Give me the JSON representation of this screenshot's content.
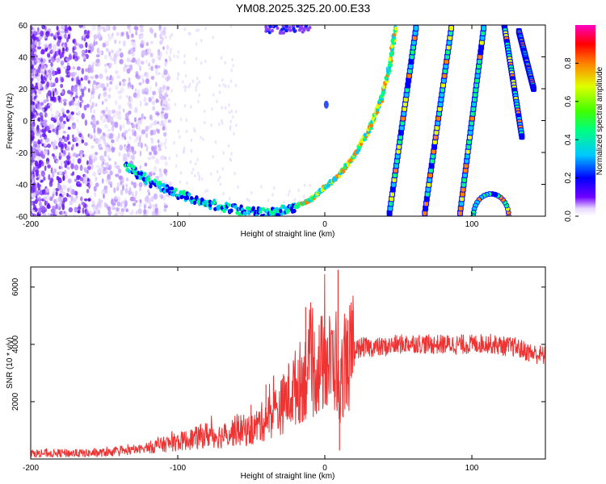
{
  "chart_data": [
    {
      "type": "heatmap",
      "title": "YM08.2025.325.20.00.E33",
      "xlabel": "Height of straight line (km)",
      "ylabel": "Frequency (Hz)",
      "xlim": [
        -200,
        150
      ],
      "ylim": [
        -60,
        60
      ],
      "x_ticks": [
        -200,
        -100,
        0,
        100
      ],
      "y_ticks": [
        -60,
        -40,
        -20,
        0,
        20,
        40,
        60
      ],
      "colorbar": {
        "label": "Normalized spectral amplitude",
        "range": [
          0,
          1
        ],
        "ticks": [
          0.0,
          0.2,
          0.4,
          0.6,
          0.8
        ]
      },
      "features": [
        {
          "name": "",
          "kind": "scatter-noise",
          "x": [
            -200,
            -110
          ],
          "y": [
            -60,
            60
          ]
        },
        {
          "name": "",
          "kind": "curve",
          "points": [
            [
              -135,
              -28
            ],
            [
              -120,
              -38
            ],
            [
              -100,
              -46
            ],
            [
              -80,
              -52
            ],
            [
              -60,
              -56
            ],
            [
              -40,
              -58
            ],
            [
              -25,
              -56
            ],
            [
              -10,
              -50
            ],
            [
              0,
              -42
            ],
            [
              10,
              -34
            ],
            [
              20,
              -22
            ],
            [
              30,
              -6
            ],
            [
              38,
              12
            ],
            [
              44,
              34
            ],
            [
              48,
              58
            ]
          ]
        },
        {
          "name": "",
          "kind": "line",
          "points": [
            [
              44,
              -58
            ],
            [
              62,
              58
            ]
          ]
        },
        {
          "name": "",
          "kind": "line",
          "points": [
            [
              68,
              -58
            ],
            [
              86,
              58
            ]
          ]
        },
        {
          "name": "",
          "kind": "line",
          "points": [
            [
              92,
              -58
            ],
            [
              108,
              58
            ]
          ]
        },
        {
          "name": "",
          "kind": "line",
          "points": [
            [
              122,
              60
            ],
            [
              134,
              -10
            ]
          ]
        },
        {
          "name": "",
          "kind": "line",
          "points": [
            [
              132,
              56
            ],
            [
              142,
              20
            ]
          ]
        }
      ]
    },
    {
      "type": "line",
      "xlabel": "Height of straight line (km)",
      "ylabel": "SNR (10 * v/v)",
      "xlim": [
        -200,
        150
      ],
      "ylim": [
        0,
        6700
      ],
      "x_ticks": [
        -200,
        -100,
        0,
        100
      ],
      "y_ticks": [
        2000,
        4000,
        6000
      ],
      "series": [
        {
          "name": "",
          "color": "#ee3333",
          "x": [
            -200,
            -180,
            -160,
            -140,
            -130,
            -120,
            -110,
            -100,
            -90,
            -80,
            -70,
            -60,
            -50,
            -45,
            -40,
            -35,
            -30,
            -25,
            -20,
            -15,
            -10,
            -5,
            0,
            5,
            8,
            10,
            12,
            15,
            20,
            25,
            30,
            40,
            50,
            60,
            70,
            80,
            90,
            100,
            110,
            120,
            130,
            140,
            150
          ],
          "y": [
            200,
            200,
            200,
            250,
            300,
            400,
            500,
            600,
            700,
            850,
            800,
            1000,
            1000,
            1200,
            1400,
            1600,
            1800,
            2200,
            2500,
            2800,
            3000,
            3200,
            3400,
            3300,
            3500,
            1800,
            3200,
            3400,
            3800,
            3900,
            3900,
            3900,
            4000,
            4050,
            4000,
            4000,
            4000,
            4000,
            4050,
            3950,
            3900,
            3700,
            3600
          ]
        }
      ],
      "spikes": [
        [
          -13,
          5300
        ],
        [
          9,
          6600
        ],
        [
          10,
          300
        ],
        [
          -40,
          2600
        ]
      ]
    }
  ]
}
